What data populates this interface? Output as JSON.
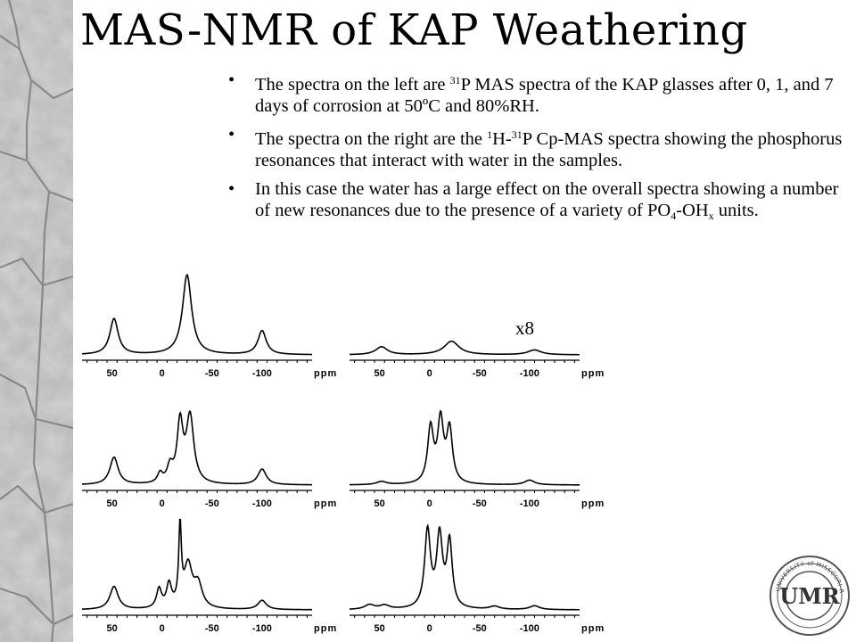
{
  "slide": {
    "title": "MAS-NMR of KAP Weathering",
    "bullets": [
      {
        "parts": [
          {
            "t": "The spectra on the left are "
          },
          {
            "t": "31",
            "sup": true
          },
          {
            "t": "P MAS spectra of the KAP glasses after 0, 1, and 7 days of corrosion at 50ºC and 80%RH."
          }
        ]
      },
      {
        "parts": [
          {
            "t": "The spectra on the right are the "
          },
          {
            "t": "1",
            "sup": true
          },
          {
            "t": "H-"
          },
          {
            "t": "31",
            "sup": true
          },
          {
            "t": "P Cp-MAS spectra showing the phosphorus resonances that interact with water in the samples."
          }
        ]
      },
      {
        "parts": [
          {
            "t": "In this case the water has a large effect on the overall spectra showing a number of new resonances due to the presence of a variety of PO"
          },
          {
            "t": "4",
            "sub": true
          },
          {
            "t": "-OH"
          },
          {
            "t": "x",
            "sub": true
          },
          {
            "t": " units."
          }
        ]
      }
    ],
    "bullet_char": "•",
    "annotation": "x8",
    "logo_text": "UNIVERSITY of MISSOURI-ROLLA",
    "logo_letters": "UMR"
  },
  "spectra_axis": {
    "ticks": [
      50,
      0,
      -50,
      -100
    ],
    "tick_labels": [
      "50",
      "0",
      "-50",
      "-100"
    ],
    "unit": "ppm",
    "xlim": [
      80,
      -150
    ]
  },
  "spectra": [
    {
      "name": "31P MAS, 0 days",
      "column": "left",
      "peaks": [
        {
          "c": 48,
          "h": 0.45,
          "w": 5
        },
        {
          "c": -25,
          "h": 1.0,
          "w": 5.5
        },
        {
          "c": -100,
          "h": 0.3,
          "w": 5
        }
      ]
    },
    {
      "name": "1H-31P CP-MAS, 0 days",
      "column": "right",
      "peaks": [
        {
          "c": 48,
          "h": 0.1,
          "w": 7
        },
        {
          "c": -22,
          "h": 0.17,
          "w": 9
        },
        {
          "c": -105,
          "h": 0.06,
          "w": 8
        }
      ]
    },
    {
      "name": "31P MAS, 1 day",
      "column": "left",
      "peaks": [
        {
          "c": 48,
          "h": 0.35,
          "w": 5
        },
        {
          "c": 2,
          "h": 0.12,
          "w": 3
        },
        {
          "c": -8,
          "h": 0.2,
          "w": 3.5
        },
        {
          "c": -18,
          "h": 0.75,
          "w": 3.5
        },
        {
          "c": -28,
          "h": 0.85,
          "w": 4.5
        },
        {
          "c": -100,
          "h": 0.2,
          "w": 5
        }
      ]
    },
    {
      "name": "1H-31P CP-MAS, 1 day",
      "column": "right",
      "peaks": [
        {
          "c": 48,
          "h": 0.04,
          "w": 6
        },
        {
          "c": -1,
          "h": 0.7,
          "w": 3.5
        },
        {
          "c": -11,
          "h": 0.78,
          "w": 3.5
        },
        {
          "c": -20,
          "h": 0.68,
          "w": 3.5
        },
        {
          "c": -100,
          "h": 0.06,
          "w": 6
        }
      ]
    },
    {
      "name": "31P MAS, 7 days",
      "column": "left",
      "peaks": [
        {
          "c": 48,
          "h": 0.3,
          "w": 5
        },
        {
          "c": 3,
          "h": 0.25,
          "w": 3
        },
        {
          "c": -7,
          "h": 0.3,
          "w": 3
        },
        {
          "c": -18,
          "h": 1.0,
          "w": 1.6
        },
        {
          "c": -26,
          "h": 0.55,
          "w": 5
        },
        {
          "c": -36,
          "h": 0.3,
          "w": 5
        },
        {
          "c": -100,
          "h": 0.12,
          "w": 5
        }
      ]
    },
    {
      "name": "1H-31P CP-MAS, 7 days",
      "column": "right",
      "peaks": [
        {
          "c": 60,
          "h": 0.06,
          "w": 6
        },
        {
          "c": 45,
          "h": 0.05,
          "w": 6
        },
        {
          "c": 2,
          "h": 1.0,
          "w": 3.5
        },
        {
          "c": -10,
          "h": 0.92,
          "w": 3.5
        },
        {
          "c": -20,
          "h": 0.85,
          "w": 3.2
        },
        {
          "c": -65,
          "h": 0.04,
          "w": 6
        },
        {
          "c": -105,
          "h": 0.05,
          "w": 6
        }
      ]
    }
  ]
}
